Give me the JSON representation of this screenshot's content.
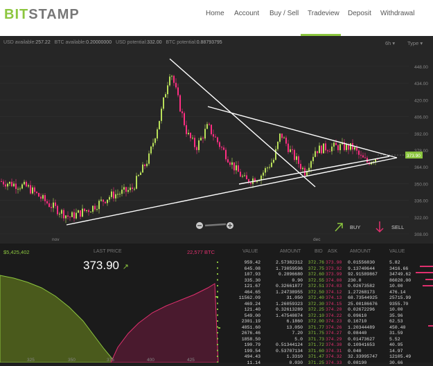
{
  "logo": {
    "part_a": "BIT",
    "part_b": "STAMP"
  },
  "nav": [
    "Home",
    "Account",
    "Buy / Sell",
    "Tradeview",
    "Deposit",
    "Withdrawal"
  ],
  "status": {
    "usd_available_label": "USD available:",
    "usd_available": "257.22",
    "btc_available_label": "BTC available:",
    "btc_available": "0.20000000",
    "usd_potential_label": "USD potential:",
    "usd_potential": "332.00",
    "btc_potential_label": "BTC potential:",
    "btc_potential": "0.88793795"
  },
  "controls": {
    "interval": "6h",
    "type": "Type"
  },
  "chart_data": {
    "type": "candlestick",
    "y_ticks": [
      "448.00",
      "434.00",
      "420.00",
      "406.00",
      "392.00",
      "378.00",
      "364.00",
      "350.00",
      "336.00",
      "322.00",
      "308.00"
    ],
    "x_labels": [
      "nov",
      "dec"
    ],
    "current_price_marker": "373.90",
    "ylim": [
      308,
      448
    ]
  },
  "actions": {
    "buy": "BUY",
    "sell": "SELL"
  },
  "depth": {
    "bid_total": "$5,425,402",
    "last_price_label": "LAST PRICE",
    "last_price": "373.90",
    "ask_total": "22,577 BTC",
    "x_ticks": [
      "325",
      "350",
      "375",
      "400",
      "425"
    ]
  },
  "book_headers": {
    "value": "VALUE",
    "amount": "AMOUNT",
    "bid": "BID",
    "ask": "ASK",
    "amount2": "AMOUNT",
    "value2": "VALUE"
  },
  "book": {
    "bid_values": [
      "959.42",
      "645.08",
      "107.93",
      "335.30",
      "121.67",
      "464.65",
      "11562.09",
      "469.24",
      "121.40",
      "549.00",
      "2301.19",
      "4851.60",
      "2676.46",
      "1858.50",
      "190.79",
      "199.54",
      "494.43",
      "11.14"
    ],
    "bid_amounts": [
      "2.57382312",
      "1.73059596",
      "0.2896680",
      "0.90",
      "0.32661877",
      "1.24738955",
      "31.050",
      "1.26059323",
      "0.32613289",
      "1.47540874",
      "6.1860",
      "13.050",
      "7.20",
      "5.0",
      "0.51344124",
      "0.53707134",
      "1.3310",
      "0.030"
    ],
    "bids": [
      "372.76",
      "372.75",
      "372.60",
      "372.55",
      "372.51",
      "372.50",
      "372.40",
      "372.30",
      "372.25",
      "372.10",
      "372.00",
      "371.77",
      "371.75",
      "371.73",
      "371.72",
      "371.60",
      "371.47",
      "371.25"
    ],
    "asks": [
      "373.90",
      "373.92",
      "373.99",
      "374.00",
      "374.03",
      "374.12",
      "374.13",
      "374.15",
      "374.20",
      "374.22",
      "374.23",
      "374.26",
      "374.27",
      "374.29",
      "374.30",
      "374.31",
      "374.32",
      "374.33"
    ],
    "ask_amounts": [
      "0.01556830",
      "9.13740644",
      "92.91589867",
      "230.0",
      "0.02673582",
      "1.27268173",
      "68.73544925",
      "25.00186676",
      "0.02672296",
      "0.09610",
      "0.16710",
      "1.20344489",
      "0.08440",
      "0.01473627",
      "0.10941653",
      "0.040",
      "32.33995747",
      "0.08190"
    ],
    "ask_values": [
      "5.82",
      "3416.66",
      "34749.62",
      "86020.00",
      "10.00",
      "476.14",
      "25715.99",
      "9355.70",
      "10.00",
      "35.96",
      "62.53",
      "450.40",
      "31.59",
      "5.52",
      "40.95",
      "14.97",
      "12105.49",
      "30.66"
    ]
  }
}
